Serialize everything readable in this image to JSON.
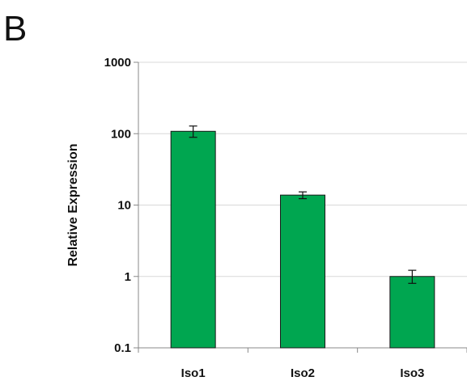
{
  "panel_label": "B",
  "chart_data": {
    "type": "bar",
    "title": "",
    "xlabel": "",
    "ylabel": "Relative Expression",
    "yscale": "log",
    "ylim": [
      0.1,
      1000
    ],
    "yticks": [
      0.1,
      1,
      10,
      100,
      1000
    ],
    "ytick_labels": [
      "0.1",
      "1",
      "10",
      "100",
      "1000"
    ],
    "grid": "horizontal",
    "categories": [
      "Iso1",
      "Iso2",
      "Iso3"
    ],
    "values": [
      108,
      13.8,
      1.0
    ],
    "error_low": [
      89,
      12.3,
      0.8
    ],
    "error_high": [
      128,
      15.3,
      1.22
    ],
    "bar_color": "#00a650",
    "bar_edge_color": "#1a1a1a"
  }
}
